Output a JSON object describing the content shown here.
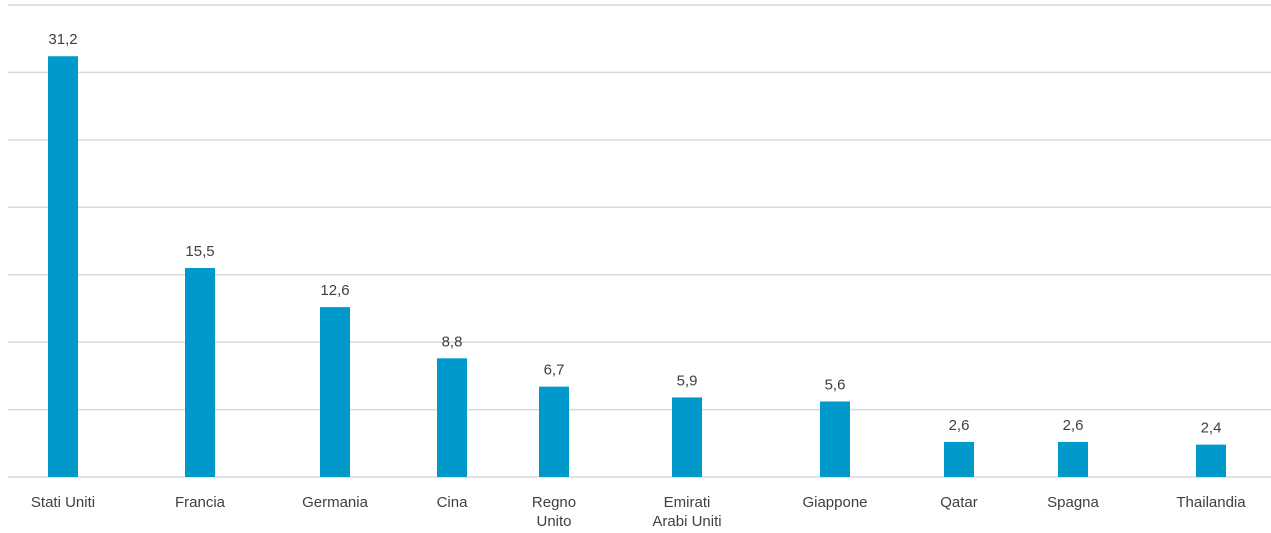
{
  "chart_data": {
    "type": "bar",
    "categories": [
      [
        "Stati Uniti"
      ],
      [
        "Francia"
      ],
      [
        "Germania"
      ],
      [
        "Cina"
      ],
      [
        "Regno",
        "Unito"
      ],
      [
        "Emirati",
        "Arabi Uniti"
      ],
      [
        "Giappone"
      ],
      [
        "Qatar"
      ],
      [
        "Spagna"
      ],
      [
        "Thailandia"
      ]
    ],
    "values": [
      31.2,
      15.5,
      12.6,
      8.8,
      6.7,
      5.9,
      5.6,
      2.6,
      2.6,
      2.4
    ],
    "value_labels": [
      "31,2",
      "15,5",
      "12,6",
      "8,8",
      "6,7",
      "5,9",
      "5,6",
      "2,6",
      "2,6",
      "2,4"
    ],
    "ylim": [
      0,
      35
    ],
    "grid": true,
    "colors": {
      "bar": "#0099CC",
      "grid": "#d9d9d9"
    }
  }
}
